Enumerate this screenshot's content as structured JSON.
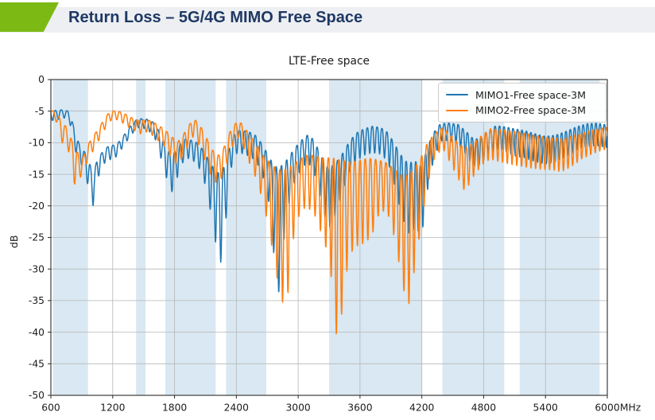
{
  "header": {
    "title": "Return Loss – 5G/4G MIMO Free Space",
    "accent_color": "#7cb914",
    "bar_color": "#edeff2",
    "title_color": "#1f3864"
  },
  "chart_data": {
    "type": "line",
    "title": "LTE-Free space",
    "ylabel": "dB",
    "x_unit": "MHz",
    "xlim": [
      600,
      6000
    ],
    "ylim": [
      -50,
      0
    ],
    "x_ticks": [
      600,
      1200,
      1800,
      2400,
      3000,
      3600,
      4200,
      4800,
      5400,
      6000
    ],
    "y_ticks": [
      0,
      -5,
      -10,
      -15,
      -20,
      -25,
      -30,
      -35,
      -40,
      -45,
      -50
    ],
    "grid": true,
    "grid_color": "#b6b6b6",
    "axis_color": "#2b2b2b",
    "band_color": "#d9e8f2",
    "legend_position": "upper right",
    "highlight_bands_mhz": [
      [
        620,
        960
      ],
      [
        1427,
        1518
      ],
      [
        1710,
        2200
      ],
      [
        2300,
        2690
      ],
      [
        3300,
        4200
      ],
      [
        4400,
        5000
      ],
      [
        5150,
        5925
      ]
    ],
    "series": [
      {
        "name": "MIMO1-Free space-3M",
        "color": "#1f77b4",
        "ripple": {
          "phase": 1.2,
          "period0": 57,
          "period_slope": 0.003
        },
        "envelope": [
          [
            600,
            -5.2,
            -6.2
          ],
          [
            640,
            -4.9,
            -6.9
          ],
          [
            700,
            -4.8,
            -5.8
          ],
          [
            780,
            -5.0,
            -6.6
          ],
          [
            830,
            -8.0,
            -11.0
          ],
          [
            880,
            -10.5,
            -13.0
          ],
          [
            930,
            -11.5,
            -14.5
          ],
          [
            980,
            -13.5,
            -18.5
          ],
          [
            1010,
            -15.5,
            -20.0
          ],
          [
            1050,
            -12.5,
            -16.0
          ],
          [
            1100,
            -11.5,
            -13.5
          ],
          [
            1160,
            -10.5,
            -12.8
          ],
          [
            1240,
            -10.3,
            -12.2
          ],
          [
            1310,
            -8.8,
            -10.4
          ],
          [
            1380,
            -7.2,
            -8.8
          ],
          [
            1440,
            -6.2,
            -7.6
          ],
          [
            1520,
            -6.2,
            -7.8
          ],
          [
            1600,
            -6.8,
            -8.8
          ],
          [
            1660,
            -8.5,
            -12.0
          ],
          [
            1720,
            -11.0,
            -15.5
          ],
          [
            1780,
            -12.0,
            -18.0
          ],
          [
            1840,
            -10.5,
            -14.8
          ],
          [
            1900,
            -9.4,
            -12.4
          ],
          [
            1960,
            -9.6,
            -12.6
          ],
          [
            2020,
            -10.0,
            -13.4
          ],
          [
            2080,
            -11.2,
            -15.5
          ],
          [
            2140,
            -13.0,
            -20.0
          ],
          [
            2200,
            -14.5,
            -26.0
          ],
          [
            2250,
            -15.0,
            -29.0
          ],
          [
            2300,
            -13.0,
            -22.0
          ],
          [
            2350,
            -9.5,
            -14.0
          ],
          [
            2410,
            -8.0,
            -11.5
          ],
          [
            2470,
            -8.1,
            -11.8
          ],
          [
            2540,
            -8.4,
            -12.2
          ],
          [
            2600,
            -9.0,
            -13.2
          ],
          [
            2660,
            -10.5,
            -15.5
          ],
          [
            2710,
            -12.0,
            -19.0
          ],
          [
            2760,
            -13.5,
            -27.0
          ],
          [
            2805,
            -14.0,
            -35.0
          ],
          [
            2850,
            -13.5,
            -27.0
          ],
          [
            2900,
            -12.5,
            -20.5
          ],
          [
            2960,
            -11.0,
            -16.5
          ],
          [
            3020,
            -9.8,
            -14.5
          ],
          [
            3090,
            -8.8,
            -13.0
          ],
          [
            3150,
            -9.5,
            -14.5
          ],
          [
            3220,
            -12.0,
            -19.0
          ],
          [
            3290,
            -14.0,
            -24.0
          ],
          [
            3350,
            -13.5,
            -22.0
          ],
          [
            3420,
            -12.0,
            -18.5
          ],
          [
            3490,
            -10.0,
            -15.0
          ],
          [
            3560,
            -8.5,
            -13.0
          ],
          [
            3640,
            -7.8,
            -12.0
          ],
          [
            3720,
            -7.4,
            -11.6
          ],
          [
            3800,
            -7.6,
            -11.8
          ],
          [
            3870,
            -8.4,
            -13.0
          ],
          [
            3930,
            -10.0,
            -16.5
          ],
          [
            3990,
            -11.8,
            -20.5
          ],
          [
            4060,
            -13.2,
            -24.5
          ],
          [
            4140,
            -13.0,
            -23.5
          ],
          [
            4200,
            -13.8,
            -24.8
          ],
          [
            4250,
            -11.0,
            -18.0
          ],
          [
            4310,
            -8.5,
            -13.0
          ],
          [
            4380,
            -7.0,
            -9.8
          ],
          [
            4460,
            -6.9,
            -9.6
          ],
          [
            4550,
            -7.1,
            -10.2
          ],
          [
            4630,
            -8.2,
            -12.0
          ],
          [
            4700,
            -9.4,
            -13.8
          ],
          [
            4770,
            -9.4,
            -13.6
          ],
          [
            4840,
            -8.2,
            -11.8
          ],
          [
            4920,
            -7.3,
            -11.0
          ],
          [
            5010,
            -7.5,
            -11.4
          ],
          [
            5100,
            -7.8,
            -12.1
          ],
          [
            5200,
            -8.1,
            -12.4
          ],
          [
            5300,
            -8.6,
            -13.0
          ],
          [
            5400,
            -9.0,
            -13.4
          ],
          [
            5500,
            -8.8,
            -13.0
          ],
          [
            5600,
            -8.2,
            -12.2
          ],
          [
            5700,
            -7.5,
            -11.2
          ],
          [
            5800,
            -7.0,
            -10.6
          ],
          [
            5900,
            -6.9,
            -10.5
          ],
          [
            6000,
            -7.2,
            -10.8
          ]
        ]
      },
      {
        "name": "MIMO2-Free space-3M",
        "color": "#ff7f0e",
        "ripple": {
          "phase": 3.9,
          "period0": 60,
          "period_slope": 0.0031
        },
        "envelope": [
          [
            600,
            -4.8,
            -5.6
          ],
          [
            650,
            -5.2,
            -6.6
          ],
          [
            700,
            -6.5,
            -9.5
          ],
          [
            730,
            -7.2,
            -11.0
          ],
          [
            760,
            -7.6,
            -10.5
          ],
          [
            800,
            -9.5,
            -14.0
          ],
          [
            835,
            -11.0,
            -17.0
          ],
          [
            870,
            -11.8,
            -15.8
          ],
          [
            910,
            -12.4,
            -15.0
          ],
          [
            950,
            -10.6,
            -13.2
          ],
          [
            1000,
            -9.2,
            -11.6
          ],
          [
            1060,
            -7.8,
            -9.8
          ],
          [
            1120,
            -6.2,
            -8.0
          ],
          [
            1170,
            -5.1,
            -6.6
          ],
          [
            1230,
            -4.9,
            -6.3
          ],
          [
            1290,
            -5.2,
            -6.8
          ],
          [
            1350,
            -5.7,
            -7.5
          ],
          [
            1410,
            -6.3,
            -8.1
          ],
          [
            1470,
            -6.5,
            -8.6
          ],
          [
            1530,
            -6.3,
            -8.3
          ],
          [
            1590,
            -6.7,
            -8.9
          ],
          [
            1650,
            -7.3,
            -9.8
          ],
          [
            1710,
            -8.0,
            -10.8
          ],
          [
            1770,
            -9.0,
            -12.5
          ],
          [
            1830,
            -9.9,
            -13.6
          ],
          [
            1890,
            -8.6,
            -12.0
          ],
          [
            1940,
            -7.2,
            -10.2
          ],
          [
            1990,
            -6.2,
            -8.8
          ],
          [
            2050,
            -7.3,
            -10.8
          ],
          [
            2110,
            -9.2,
            -13.6
          ],
          [
            2170,
            -11.2,
            -16.0
          ],
          [
            2230,
            -12.0,
            -16.6
          ],
          [
            2290,
            -10.4,
            -14.4
          ],
          [
            2350,
            -7.8,
            -11.0
          ],
          [
            2420,
            -6.4,
            -9.2
          ],
          [
            2480,
            -7.6,
            -11.2
          ],
          [
            2540,
            -9.0,
            -13.8
          ],
          [
            2600,
            -10.4,
            -16.0
          ],
          [
            2660,
            -12.0,
            -19.5
          ],
          [
            2720,
            -13.0,
            -24.0
          ],
          [
            2780,
            -14.0,
            -30.0
          ],
          [
            2840,
            -14.4,
            -35.5
          ],
          [
            2900,
            -14.0,
            -34.0
          ],
          [
            2950,
            -13.4,
            -25.5
          ],
          [
            3010,
            -12.6,
            -21.5
          ],
          [
            3080,
            -12.0,
            -20.0
          ],
          [
            3160,
            -12.0,
            -21.5
          ],
          [
            3240,
            -12.4,
            -25.0
          ],
          [
            3310,
            -12.4,
            -29.0
          ],
          [
            3360,
            -12.5,
            -41.0
          ],
          [
            3420,
            -12.8,
            -37.5
          ],
          [
            3490,
            -13.0,
            -28.0
          ],
          [
            3560,
            -13.0,
            -26.5
          ],
          [
            3630,
            -12.6,
            -26.0
          ],
          [
            3710,
            -12.5,
            -25.0
          ],
          [
            3790,
            -12.8,
            -21.0
          ],
          [
            3860,
            -13.2,
            -20.8
          ],
          [
            3920,
            -14.0,
            -24.0
          ],
          [
            3990,
            -15.0,
            -30.0
          ],
          [
            4060,
            -15.2,
            -37.0
          ],
          [
            4130,
            -14.0,
            -30.0
          ],
          [
            4190,
            -12.4,
            -23.5
          ],
          [
            4250,
            -10.2,
            -17.0
          ],
          [
            4320,
            -8.6,
            -12.6
          ],
          [
            4400,
            -7.6,
            -10.8
          ],
          [
            4470,
            -8.6,
            -13.0
          ],
          [
            4550,
            -10.0,
            -15.6
          ],
          [
            4620,
            -10.9,
            -17.8
          ],
          [
            4700,
            -10.0,
            -15.4
          ],
          [
            4780,
            -8.9,
            -13.6
          ],
          [
            4860,
            -7.8,
            -12.6
          ],
          [
            4950,
            -7.9,
            -13.0
          ],
          [
            5050,
            -8.1,
            -13.4
          ],
          [
            5150,
            -8.3,
            -13.7
          ],
          [
            5250,
            -8.7,
            -14.0
          ],
          [
            5350,
            -9.0,
            -14.2
          ],
          [
            5450,
            -9.2,
            -14.3
          ],
          [
            5560,
            -9.4,
            -14.6
          ],
          [
            5650,
            -9.0,
            -13.8
          ],
          [
            5750,
            -8.5,
            -12.6
          ],
          [
            5850,
            -8.0,
            -11.8
          ],
          [
            5950,
            -7.7,
            -11.2
          ],
          [
            6000,
            -7.6,
            -11.0
          ]
        ]
      }
    ]
  }
}
